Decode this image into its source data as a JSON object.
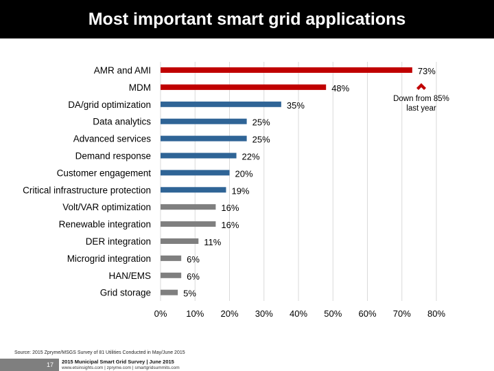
{
  "title": "Most important smart grid applications",
  "chart_data": {
    "type": "bar",
    "orientation": "horizontal",
    "categories": [
      "AMR and AMI",
      "MDM",
      "DA/grid optimization",
      "Data analytics",
      "Advanced services",
      "Demand response",
      "Customer engagement",
      "Critical infrastructure protection",
      "Volt/VAR optimization",
      "Renewable integration",
      "DER integration",
      "Microgrid integration",
      "HAN/EMS",
      "Grid storage"
    ],
    "values": [
      73,
      48,
      35,
      25,
      25,
      22,
      20,
      19,
      16,
      16,
      11,
      6,
      6,
      5
    ],
    "value_labels": [
      "73%",
      "48%",
      "35%",
      "25%",
      "25%",
      "22%",
      "20%",
      "19%",
      "16%",
      "16%",
      "11%",
      "6%",
      "6%",
      "5%"
    ],
    "bar_groups": [
      "red",
      "red",
      "blue",
      "blue",
      "blue",
      "blue",
      "blue",
      "blue",
      "gray",
      "gray",
      "gray",
      "gray",
      "gray",
      "gray"
    ],
    "colors": {
      "red": "#c00000",
      "blue": "#2f6496",
      "gray": "#7f7f7f"
    },
    "xlim": [
      0,
      80
    ],
    "xticks": [
      0,
      10,
      20,
      30,
      40,
      50,
      60,
      70,
      80
    ],
    "xtick_labels": [
      "0%",
      "10%",
      "20%",
      "30%",
      "40%",
      "50%",
      "60%",
      "70%",
      "80%"
    ],
    "grid": "vertical",
    "grid_color": "#d9d9d9",
    "annotation": {
      "text_lines": [
        "Down from 85%",
        "last year"
      ],
      "color": "#c00000"
    }
  },
  "source": "Source: 2015 Zpryme/MSGS Survey of 81 Utilities Conducted in May/June 2015",
  "footer": {
    "page_number": "17",
    "line1": "2015 Municipal Smart Grid Survey | June 2015",
    "line2": "www.etsinsights.com | zpryme.com | smartgridsummits.com"
  }
}
